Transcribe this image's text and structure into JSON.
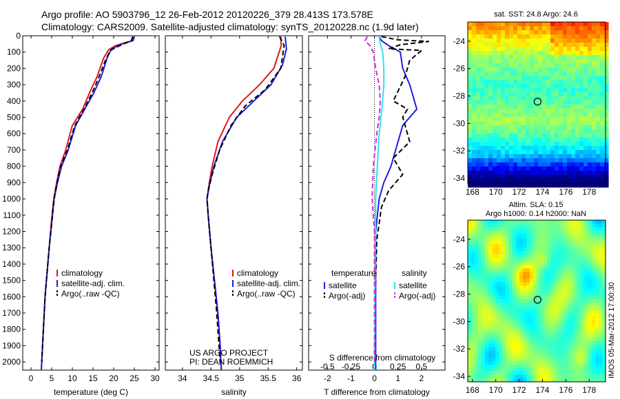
{
  "header": {
    "line1": "Argo profile: AO 5903796_12 26-Feb-2012 20120226_379 28.413S 173.578E",
    "line2": "Climatology: CARS2009. Satellite-adjusted climatology: synTS_20120228.nc (1.9d later)"
  },
  "sst_title": "sat. SST: 24.8 Argo: 24.6",
  "sla_title_1": "Altim. SLA: 0.15",
  "sla_title_2": "Argo h1000: 0.14 h2000: NaN",
  "credit_line1": "US ARGO PROJECT",
  "credit_line2": "PI: DEAN ROEMMICH",
  "side_label": "IMOS 05-Mar-2012 17:00:30",
  "colors": {
    "red": "#e3141d",
    "blue": "#1d1de0",
    "black": "#000000",
    "cyan": "#28e6ea",
    "magenta": "#e020e0"
  },
  "chart_data": [
    {
      "type": "line",
      "id": "temperature",
      "xlabel": "temperature (deg C)",
      "xlim": [
        -2,
        31
      ],
      "ylim": [
        0,
        2050
      ],
      "xticks": [
        0,
        5,
        10,
        15,
        20,
        25,
        30
      ],
      "yticks": [
        0,
        100,
        200,
        300,
        400,
        500,
        600,
        700,
        800,
        900,
        1000,
        1100,
        1200,
        1300,
        1400,
        1500,
        1600,
        1700,
        1800,
        1900,
        2000
      ],
      "legend": [
        "climatology",
        "satellite-adj. clim.",
        "Argo(..raw -QC)"
      ],
      "series": [
        {
          "name": "climatology",
          "color": "red",
          "dash": "solid",
          "points": [
            [
              24.8,
              5
            ],
            [
              24.5,
              30
            ],
            [
              20.5,
              60
            ],
            [
              18.8,
              85
            ],
            [
              17.5,
              140
            ],
            [
              16,
              250
            ],
            [
              14.5,
              330
            ],
            [
              12.5,
              450
            ],
            [
              10,
              550
            ],
            [
              8.4,
              700
            ],
            [
              7,
              800
            ],
            [
              6.2,
              900
            ],
            [
              5.5,
              1000
            ],
            [
              4.9,
              1150
            ],
            [
              4.4,
              1300
            ],
            [
              3.9,
              1450
            ],
            [
              3.4,
              1600
            ],
            [
              3,
              1800
            ],
            [
              2.5,
              2050
            ]
          ]
        },
        {
          "name": "satellite-adj. clim.",
          "color": "blue",
          "dash": "solid",
          "points": [
            [
              25,
              5
            ],
            [
              24.7,
              30
            ],
            [
              22,
              50
            ],
            [
              19.5,
              80
            ],
            [
              18.5,
              130
            ],
            [
              17,
              250
            ],
            [
              15.2,
              350
            ],
            [
              13,
              450
            ],
            [
              10.8,
              550
            ],
            [
              9,
              700
            ],
            [
              7.4,
              800
            ],
            [
              6.4,
              900
            ],
            [
              5.6,
              1000
            ],
            [
              5,
              1150
            ],
            [
              4.4,
              1300
            ],
            [
              3.9,
              1450
            ],
            [
              3.4,
              1600
            ],
            [
              3,
              1800
            ],
            [
              2.5,
              2050
            ]
          ]
        },
        {
          "name": "Argo(..raw -QC)",
          "color": "black",
          "dash": "dashed",
          "points": [
            [
              24.6,
              5
            ],
            [
              24.3,
              30
            ],
            [
              21.5,
              60
            ],
            [
              19.2,
              90
            ],
            [
              18,
              150
            ],
            [
              16.5,
              250
            ],
            [
              14.8,
              350
            ],
            [
              12.8,
              450
            ],
            [
              10.6,
              550
            ],
            [
              8.8,
              700
            ],
            [
              7.2,
              800
            ],
            [
              6.3,
              900
            ],
            [
              5.6,
              1000
            ],
            [
              5,
              1150
            ],
            [
              4.4,
              1300
            ],
            [
              3.9,
              1450
            ],
            [
              3.4,
              1600
            ],
            [
              3,
              1800
            ],
            [
              2.6,
              2000
            ]
          ]
        }
      ]
    },
    {
      "type": "line",
      "id": "salinity",
      "xlabel": "salinity",
      "xlim": [
        33.7,
        36.1
      ],
      "ylim": [
        0,
        2050
      ],
      "xticks": [
        34,
        34.5,
        35,
        35.5,
        36
      ],
      "legend": [
        "climatology",
        "satellite-adj. clim.",
        "Argo(..raw -QC)"
      ],
      "series": [
        {
          "name": "climatology",
          "color": "red",
          "dash": "solid",
          "points": [
            [
              35.72,
              5
            ],
            [
              35.73,
              60
            ],
            [
              35.6,
              200
            ],
            [
              35.35,
              300
            ],
            [
              35.05,
              400
            ],
            [
              34.82,
              500
            ],
            [
              34.62,
              650
            ],
            [
              34.52,
              800
            ],
            [
              34.47,
              900
            ],
            [
              34.43,
              1000
            ],
            [
              34.45,
              1100
            ],
            [
              34.5,
              1300
            ],
            [
              34.56,
              1500
            ],
            [
              34.62,
              1700
            ],
            [
              34.66,
              1900
            ],
            [
              34.68,
              2050
            ]
          ]
        },
        {
          "name": "satellite-adj. clim.",
          "color": "blue",
          "dash": "solid",
          "points": [
            [
              35.8,
              5
            ],
            [
              35.82,
              80
            ],
            [
              35.75,
              180
            ],
            [
              35.55,
              300
            ],
            [
              35.25,
              400
            ],
            [
              34.95,
              500
            ],
            [
              34.7,
              650
            ],
            [
              34.55,
              800
            ],
            [
              34.48,
              900
            ],
            [
              34.43,
              1000
            ],
            [
              34.45,
              1100
            ],
            [
              34.5,
              1300
            ],
            [
              34.56,
              1500
            ],
            [
              34.62,
              1700
            ],
            [
              34.66,
              1900
            ],
            [
              34.68,
              2050
            ]
          ]
        },
        {
          "name": "Argo(..raw -QC)",
          "color": "black",
          "dash": "dashed",
          "points": [
            [
              35.7,
              5
            ],
            [
              35.78,
              60
            ],
            [
              35.72,
              200
            ],
            [
              35.45,
              330
            ],
            [
              35.1,
              430
            ],
            [
              34.85,
              550
            ],
            [
              34.65,
              700
            ],
            [
              34.52,
              850
            ],
            [
              34.45,
              950
            ],
            [
              34.43,
              1000
            ],
            [
              34.45,
              1100
            ],
            [
              34.5,
              1300
            ],
            [
              34.55,
              1500
            ],
            [
              34.6,
              1700
            ],
            [
              34.64,
              1900
            ],
            [
              34.66,
              2000
            ]
          ]
        }
      ]
    },
    {
      "type": "line",
      "id": "difference",
      "xlabel": "T difference from climatology",
      "xlabel_top": "S difference from climatology",
      "xlim": [
        -2.8,
        3.0
      ],
      "ylim": [
        0,
        2050
      ],
      "xticks": [
        -2,
        -1,
        0,
        1,
        2
      ],
      "top_ticks": [
        {
          "x": -2,
          "label": "-0.5"
        },
        {
          "x": -1,
          "label": "-0.25"
        },
        {
          "x": 0,
          "label": "0"
        },
        {
          "x": 1,
          "label": "0.25"
        },
        {
          "x": 2,
          "label": "0.5"
        }
      ],
      "legend_left_head": "temperature",
      "legend_right_head": "salinity",
      "legend_left": [
        "satellite",
        "Argo(-adj)"
      ],
      "legend_right": [
        "satellite",
        "Argo(-adj)"
      ],
      "series": [
        {
          "name": "T satellite",
          "color": "blue",
          "dash": "solid",
          "points": [
            [
              0.2,
              5
            ],
            [
              0.3,
              30
            ],
            [
              0.6,
              60
            ],
            [
              1.1,
              100
            ],
            [
              1.2,
              200
            ],
            [
              1.5,
              300
            ],
            [
              1.7,
              400
            ],
            [
              1.8,
              450
            ],
            [
              1.2,
              550
            ],
            [
              0.9,
              700
            ],
            [
              0.7,
              800
            ],
            [
              0.4,
              900
            ],
            [
              0.2,
              1000
            ],
            [
              0.05,
              1200
            ],
            [
              0.05,
              2050
            ]
          ]
        },
        {
          "name": "T Argo(-adj)",
          "color": "black",
          "dash": "dashed",
          "points": [
            [
              0.3,
              5
            ],
            [
              1.0,
              25
            ],
            [
              2.3,
              35
            ],
            [
              1.1,
              55
            ],
            [
              0.6,
              80
            ],
            [
              2.0,
              90
            ],
            [
              1.5,
              150
            ],
            [
              1.3,
              250
            ],
            [
              0.8,
              400
            ],
            [
              1.4,
              450
            ],
            [
              1.2,
              500
            ],
            [
              1.5,
              650
            ],
            [
              0.8,
              750
            ],
            [
              1.2,
              850
            ],
            [
              0.6,
              950
            ],
            [
              0.3,
              1050
            ],
            [
              0.1,
              1250
            ],
            [
              0.05,
              1500
            ],
            [
              0.0,
              2000
            ]
          ]
        },
        {
          "name": "S satellite",
          "color": "cyan",
          "dash": "solid",
          "points": [
            [
              0.2,
              5
            ],
            [
              0.25,
              50
            ],
            [
              0.35,
              100
            ],
            [
              0.4,
              200
            ],
            [
              0.4,
              300
            ],
            [
              0.35,
              400
            ],
            [
              0.2,
              600
            ],
            [
              0.1,
              850
            ],
            [
              0.05,
              1000
            ],
            [
              0.0,
              2050
            ]
          ]
        },
        {
          "name": "S Argo(-adj)",
          "color": "magenta",
          "dash": "dashed",
          "points": [
            [
              -0.3,
              5
            ],
            [
              -0.4,
              30
            ],
            [
              -0.2,
              60
            ],
            [
              -0.05,
              100
            ],
            [
              0.05,
              200
            ],
            [
              0.2,
              300
            ],
            [
              0.25,
              400
            ],
            [
              0.2,
              500
            ],
            [
              0.1,
              600
            ],
            [
              -0.05,
              800
            ],
            [
              -0.1,
              1000
            ],
            [
              0.0,
              1200
            ],
            [
              0.0,
              2000
            ]
          ]
        }
      ]
    },
    {
      "type": "heatmap",
      "id": "sst-map",
      "title": "sat. SST: 24.8 Argo: 24.6",
      "xlim": [
        167.6,
        179.4
      ],
      "ylim": [
        -34.4,
        -22.6
      ],
      "xticks": [
        168,
        170,
        172,
        174,
        176,
        178
      ],
      "yticks": [
        -24,
        -26,
        -28,
        -30,
        -32,
        -34
      ],
      "marker": {
        "lon": 173.578,
        "lat": -28.413
      }
    },
    {
      "type": "heatmap",
      "id": "sla-map",
      "title": "Altim. SLA: 0.15",
      "xlim": [
        167.6,
        179.4
      ],
      "ylim": [
        -34.4,
        -22.6
      ],
      "xticks": [
        168,
        170,
        172,
        174,
        176,
        178
      ],
      "yticks": [
        -24,
        -26,
        -28,
        -30,
        -32,
        -34
      ],
      "marker": {
        "lon": 173.578,
        "lat": -28.413
      }
    }
  ]
}
